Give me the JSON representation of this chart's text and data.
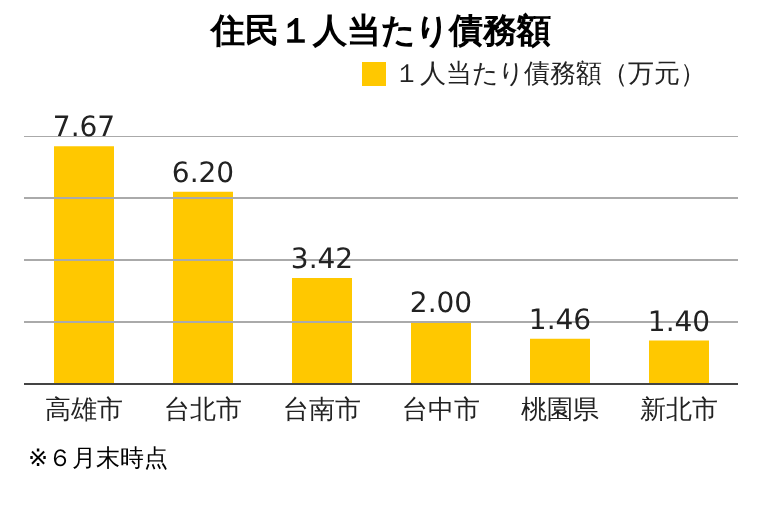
{
  "chart_data": {
    "type": "bar",
    "title": "住民１人当たり債務額",
    "categories": [
      "高雄市",
      "台北市",
      "台南市",
      "台中市",
      "桃園県",
      "新北市"
    ],
    "series": [
      {
        "name": "１人当たり債務額（万元）",
        "color": "#ffc800",
        "values": [
          7.67,
          6.2,
          3.42,
          2.0,
          1.46,
          1.4
        ],
        "value_labels": [
          "7.67",
          "6.20",
          "3.42",
          "2.00",
          "1.46",
          "1.40"
        ]
      }
    ],
    "ylim": [
      0,
      8
    ],
    "yticks": [
      {
        "value": 0,
        "label": null
      },
      {
        "value": 2,
        "label": null
      },
      {
        "value": 4,
        "label": null
      },
      {
        "value": 6,
        "label": null
      },
      {
        "value": 8,
        "label": null
      }
    ],
    "tick_labels": "x",
    "grid": "y",
    "legend": "top right",
    "annotations": [
      "※６月末時点"
    ]
  }
}
